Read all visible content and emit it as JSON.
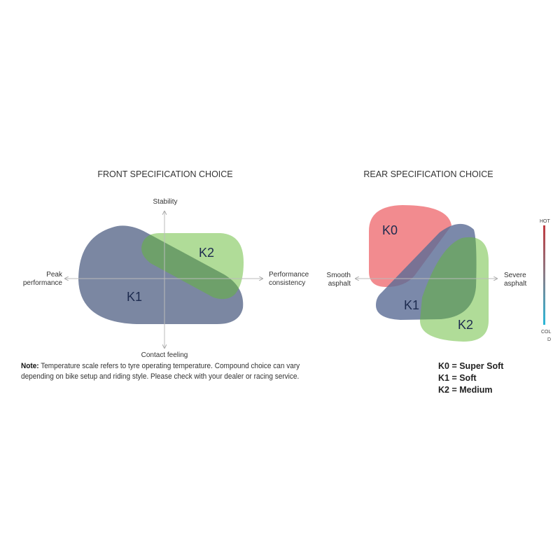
{
  "front": {
    "title": "FRONT SPECIFICATION CHOICE",
    "axis_top": "Stability",
    "axis_bottom": "Contact feeling",
    "axis_left": [
      "Peak",
      "performance"
    ],
    "axis_right": [
      "Performance",
      "consistency"
    ],
    "regions": [
      {
        "label": "K1",
        "color": "#7b87a2"
      },
      {
        "label": "K2",
        "color": "#61b931"
      }
    ]
  },
  "rear": {
    "title": "REAR SPECIFICATION CHOICE",
    "axis_left": [
      "Smooth",
      "asphalt"
    ],
    "axis_right": [
      "Severe",
      "asphalt"
    ],
    "regions": [
      {
        "label": "K0",
        "color": "#f28b8f"
      },
      {
        "label": "K1",
        "color": "#6f7fa0"
      },
      {
        "label": "K2",
        "color": "#61b931"
      }
    ],
    "temperature_scale": {
      "top": "HOT",
      "bottom": [
        "COL",
        "D"
      ],
      "hot_color": "#c0393f",
      "cold_color": "#2ab7d8"
    }
  },
  "note": {
    "label": "Note:",
    "line1": " Temperature scale refers to tyre operating temperature. Compound choice can vary",
    "line2": "depending on bike setup and riding style. Please check with your dealer or racing service."
  },
  "legend": [
    "K0 = Super Soft",
    "K1 = Soft",
    "K2 = Medium"
  ]
}
